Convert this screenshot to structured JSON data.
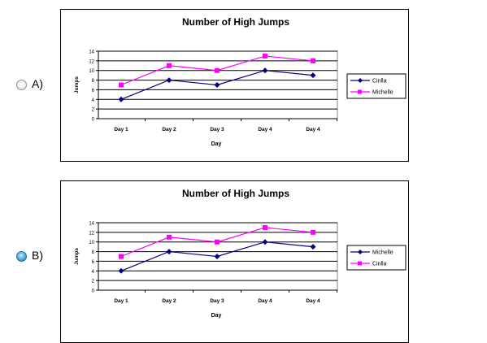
{
  "options": [
    {
      "letter": "A)",
      "selected": false,
      "chart_data": {
        "type": "line",
        "title": "Number of High Jumps",
        "xlabel": "Day",
        "ylabel": "Jumps",
        "categories": [
          "Day 1",
          "Day 2",
          "Day 3",
          "Day 4",
          "Day 4"
        ],
        "ylim": [
          0,
          14
        ],
        "yticks": [
          "0",
          "2",
          "4",
          "6",
          "8",
          "10",
          "12",
          "14"
        ],
        "grid": true,
        "legend_position": "right",
        "series": [
          {
            "name": "Cinlla",
            "values": [
              4,
              8,
              7,
              10,
              9
            ],
            "color": "#000080",
            "marker": "diamond"
          },
          {
            "name": "Michelle",
            "values": [
              7,
              11,
              10,
              13,
              12
            ],
            "color": "#ff00ff",
            "marker": "square"
          }
        ]
      }
    },
    {
      "letter": "B)",
      "selected": true,
      "chart_data": {
        "type": "line",
        "title": "Number of High Jumps",
        "xlabel": "Day",
        "ylabel": "Jumps",
        "categories": [
          "Day 1",
          "Day 2",
          "Day 3",
          "Day 4",
          "Day 4"
        ],
        "ylim": [
          0,
          14
        ],
        "yticks": [
          "0",
          "2",
          "4",
          "6",
          "8",
          "10",
          "12",
          "14"
        ],
        "grid": true,
        "legend_position": "right",
        "series": [
          {
            "name": "Michelle",
            "values": [
              4,
              8,
              7,
              10,
              9
            ],
            "color": "#000080",
            "marker": "diamond"
          },
          {
            "name": "Cinlla",
            "values": [
              7,
              11,
              10,
              13,
              12
            ],
            "color": "#ff00ff",
            "marker": "square"
          }
        ]
      }
    }
  ]
}
